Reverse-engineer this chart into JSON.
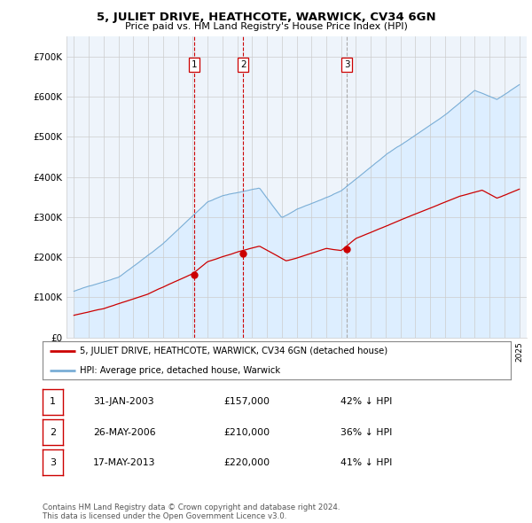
{
  "title": "5, JULIET DRIVE, HEATHCOTE, WARWICK, CV34 6GN",
  "subtitle": "Price paid vs. HM Land Registry's House Price Index (HPI)",
  "ylim": [
    0,
    750000
  ],
  "yticks": [
    0,
    100000,
    200000,
    300000,
    400000,
    500000,
    600000,
    700000
  ],
  "ytick_labels": [
    "£0",
    "£100K",
    "£200K",
    "£300K",
    "£400K",
    "£500K",
    "£600K",
    "£700K"
  ],
  "sale_color": "#cc0000",
  "hpi_color": "#7aaed6",
  "hpi_fill_color": "#ddeeff",
  "vline_color_12": "#cc0000",
  "vline_color_3": "#aaaaaa",
  "grid_color": "#cccccc",
  "sales": [
    {
      "date_num": 2003.08,
      "price": 157000,
      "label": "1",
      "vline": "red"
    },
    {
      "date_num": 2006.4,
      "price": 210000,
      "label": "2",
      "vline": "red"
    },
    {
      "date_num": 2013.38,
      "price": 220000,
      "label": "3",
      "vline": "gray"
    }
  ],
  "legend_sale_label": "5, JULIET DRIVE, HEATHCOTE, WARWICK, CV34 6GN (detached house)",
  "legend_hpi_label": "HPI: Average price, detached house, Warwick",
  "table_rows": [
    {
      "num": "1",
      "date": "31-JAN-2003",
      "price": "£157,000",
      "pct": "42% ↓ HPI"
    },
    {
      "num": "2",
      "date": "26-MAY-2006",
      "price": "£210,000",
      "pct": "36% ↓ HPI"
    },
    {
      "num": "3",
      "date": "17-MAY-2013",
      "price": "£220,000",
      "pct": "41% ↓ HPI"
    }
  ],
  "footer": "Contains HM Land Registry data © Crown copyright and database right 2024.\nThis data is licensed under the Open Government Licence v3.0.",
  "background_color": "#ffffff"
}
